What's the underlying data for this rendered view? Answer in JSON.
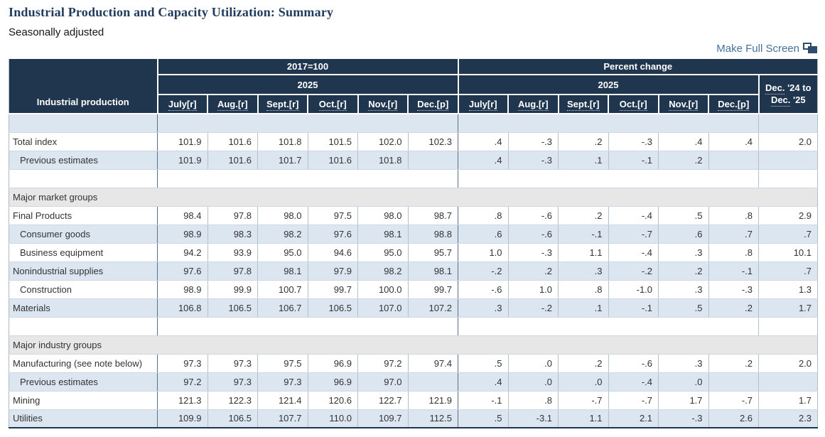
{
  "page": {
    "title": "Industrial Production and Capacity Utilization: Summary",
    "subtitle": "Seasonally adjusted",
    "fullscreen_label": "Make Full Screen"
  },
  "colors": {
    "header_navy": "#20364f",
    "alt_row_blue": "#dce6f1",
    "section_gray": "#e7e7e7",
    "title_navy": "#1f3a5c",
    "link_blue": "#44719e"
  },
  "table": {
    "row_header_label": "Industrial production",
    "group1_header": "2017=100",
    "group2_header": "Percent change",
    "year_left": "2025",
    "year_right": "2025",
    "yoy_header": {
      "l1a": "Dec.",
      "l1b": " '24 to",
      "l2a": "Dec.",
      "l2b": " '25"
    },
    "months": [
      "July[r]",
      "Aug.[r]",
      "Sept.[r]",
      "Oct.[r]",
      "Nov.[r]",
      "Dec.[p]"
    ],
    "rows": [
      {
        "type": "spacer"
      },
      {
        "type": "data",
        "label": "Total index",
        "indent": false,
        "index": [
          "101.9",
          "101.6",
          "101.8",
          "101.5",
          "102.0",
          "102.3"
        ],
        "pct": [
          ".4",
          "-.3",
          ".2",
          "-.3",
          ".4",
          ".4"
        ],
        "yoy": "2.0"
      },
      {
        "type": "data",
        "label": "Previous estimates",
        "indent": true,
        "index": [
          "101.9",
          "101.6",
          "101.7",
          "101.6",
          "101.8",
          ""
        ],
        "pct": [
          ".4",
          "-.3",
          ".1",
          "-.1",
          ".2",
          ""
        ],
        "yoy": ""
      },
      {
        "type": "spacer"
      },
      {
        "type": "section",
        "label": "Major market groups"
      },
      {
        "type": "data",
        "label": "Final Products",
        "indent": false,
        "index": [
          "98.4",
          "97.8",
          "98.0",
          "97.5",
          "98.0",
          "98.7"
        ],
        "pct": [
          ".8",
          "-.6",
          ".2",
          "-.4",
          ".5",
          ".8"
        ],
        "yoy": "2.9"
      },
      {
        "type": "data",
        "label": "Consumer goods",
        "indent": true,
        "index": [
          "98.9",
          "98.3",
          "98.2",
          "97.6",
          "98.1",
          "98.8"
        ],
        "pct": [
          ".6",
          "-.6",
          "-.1",
          "-.7",
          ".6",
          ".7"
        ],
        "yoy": ".7"
      },
      {
        "type": "data",
        "label": "Business equipment",
        "indent": true,
        "index": [
          "94.2",
          "93.9",
          "95.0",
          "94.6",
          "95.0",
          "95.7"
        ],
        "pct": [
          "1.0",
          "-.3",
          "1.1",
          "-.4",
          ".3",
          ".8"
        ],
        "yoy": "10.1"
      },
      {
        "type": "data",
        "label": "Nonindustrial supplies",
        "indent": false,
        "index": [
          "97.6",
          "97.8",
          "98.1",
          "97.9",
          "98.2",
          "98.1"
        ],
        "pct": [
          "-.2",
          ".2",
          ".3",
          "-.2",
          ".2",
          "-.1"
        ],
        "yoy": ".7"
      },
      {
        "type": "data",
        "label": "Construction",
        "indent": true,
        "index": [
          "98.9",
          "99.9",
          "100.7",
          "99.7",
          "100.0",
          "99.7"
        ],
        "pct": [
          "-.6",
          "1.0",
          ".8",
          "-1.0",
          ".3",
          "-.3"
        ],
        "yoy": "1.3"
      },
      {
        "type": "data",
        "label": "Materials",
        "indent": false,
        "index": [
          "106.8",
          "106.5",
          "106.7",
          "106.5",
          "107.0",
          "107.2"
        ],
        "pct": [
          ".3",
          "-.2",
          ".1",
          "-.1",
          ".5",
          ".2"
        ],
        "yoy": "1.7"
      },
      {
        "type": "spacer"
      },
      {
        "type": "section",
        "label": "Major industry groups"
      },
      {
        "type": "data",
        "label": "Manufacturing (see note below)",
        "indent": false,
        "index": [
          "97.3",
          "97.3",
          "97.5",
          "96.9",
          "97.2",
          "97.4"
        ],
        "pct": [
          ".5",
          ".0",
          ".2",
          "-.6",
          ".3",
          ".2"
        ],
        "yoy": "2.0"
      },
      {
        "type": "data",
        "label": "Previous estimates",
        "indent": true,
        "index": [
          "97.2",
          "97.3",
          "97.3",
          "96.9",
          "97.0",
          ""
        ],
        "pct": [
          ".4",
          ".0",
          ".0",
          "-.4",
          ".0",
          ""
        ],
        "yoy": ""
      },
      {
        "type": "data",
        "label": "Mining",
        "indent": false,
        "index": [
          "121.3",
          "122.3",
          "121.4",
          "120.6",
          "122.7",
          "121.9"
        ],
        "pct": [
          "-.1",
          ".8",
          "-.7",
          "-.7",
          "1.7",
          "-.7"
        ],
        "yoy": "1.7"
      },
      {
        "type": "data",
        "label": "Utilities",
        "indent": false,
        "index": [
          "109.9",
          "106.5",
          "107.7",
          "110.0",
          "109.7",
          "112.5"
        ],
        "pct": [
          ".5",
          "-3.1",
          "1.1",
          "2.1",
          "-.3",
          "2.6"
        ],
        "yoy": "2.3"
      }
    ]
  }
}
